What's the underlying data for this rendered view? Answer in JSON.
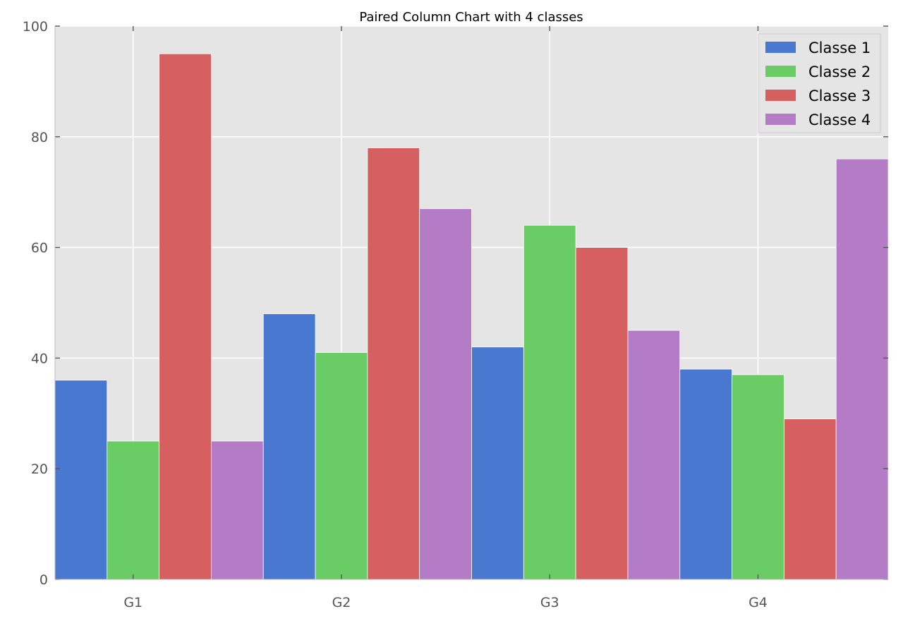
{
  "chart_data": {
    "type": "bar",
    "title": "Paired Column Chart with 4 classes",
    "xlabel": "",
    "ylabel": "",
    "categories": [
      "G1",
      "G2",
      "G3",
      "G4"
    ],
    "ylim": [
      0,
      100
    ],
    "yticks": [
      0,
      20,
      40,
      60,
      80,
      100
    ],
    "grid": true,
    "legend_position": "top-right",
    "series": [
      {
        "name": "Classe 1",
        "color": "#4878cf",
        "values": [
          36,
          48,
          42,
          38
        ]
      },
      {
        "name": "Classe 2",
        "color": "#6acc65",
        "values": [
          25,
          41,
          64,
          37
        ]
      },
      {
        "name": "Classe 3",
        "color": "#d65f5f",
        "values": [
          95,
          78,
          60,
          29
        ]
      },
      {
        "name": "Classe 4",
        "color": "#b47cc7",
        "values": [
          25,
          67,
          45,
          76
        ]
      }
    ]
  }
}
